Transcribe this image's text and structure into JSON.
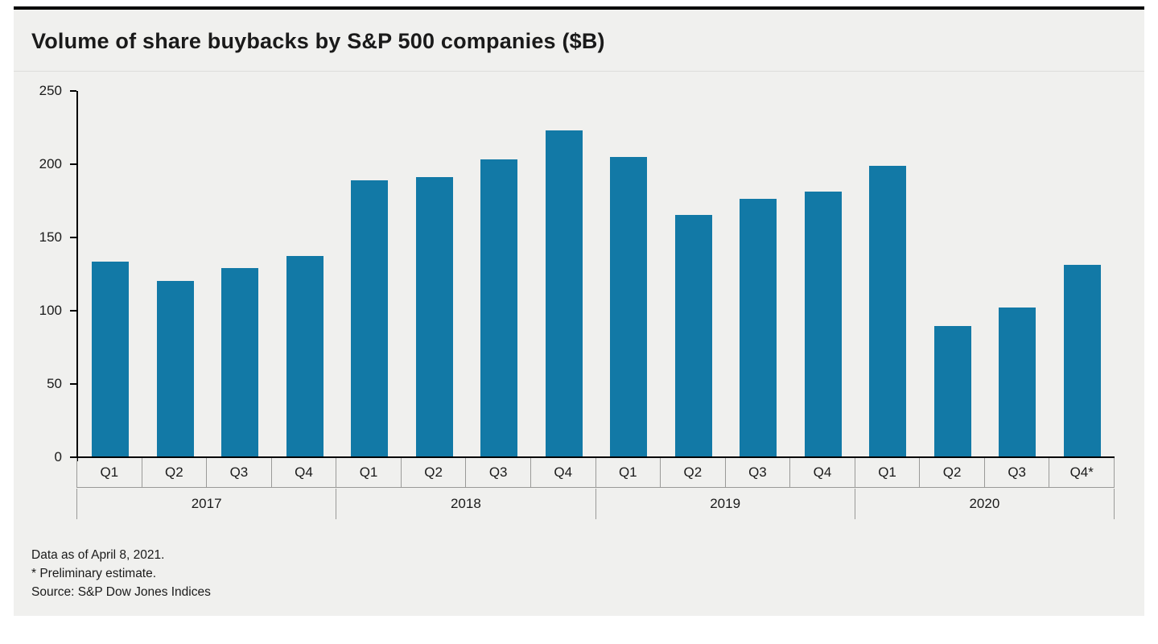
{
  "title": "Volume of share buybacks by S&P 500 companies ($B)",
  "colors": {
    "bar": "#1279a6",
    "figure_background": "#f0f0ee",
    "axis": "#000000",
    "grid_separator": "#9a9a98",
    "top_rule": "#000000"
  },
  "chart_data": {
    "type": "bar",
    "title": "Volume of share buybacks by S&P 500 companies ($B)",
    "categories": [
      "Q1",
      "Q2",
      "Q3",
      "Q4",
      "Q1",
      "Q2",
      "Q3",
      "Q4",
      "Q1",
      "Q2",
      "Q3",
      "Q4",
      "Q1",
      "Q2",
      "Q3",
      "Q4*"
    ],
    "values": [
      133,
      120,
      129,
      137,
      189,
      191,
      203,
      223,
      205,
      165,
      176,
      181,
      199,
      89,
      102,
      131
    ],
    "year_groups": [
      {
        "label": "2017",
        "span": 4
      },
      {
        "label": "2018",
        "span": 4
      },
      {
        "label": "2019",
        "span": 4
      },
      {
        "label": "2020",
        "span": 4
      }
    ],
    "xlabel": "",
    "ylabel": "",
    "ylim": [
      0,
      250
    ],
    "yticks": [
      0,
      50,
      100,
      150,
      200,
      250
    ],
    "grid": false,
    "legend": "none",
    "bar_color": "#1279a6"
  },
  "footnotes": {
    "line1": "Data as of April 8, 2021.",
    "line2": "* Preliminary estimate.",
    "line3": "Source: S&P Dow Jones Indices"
  }
}
